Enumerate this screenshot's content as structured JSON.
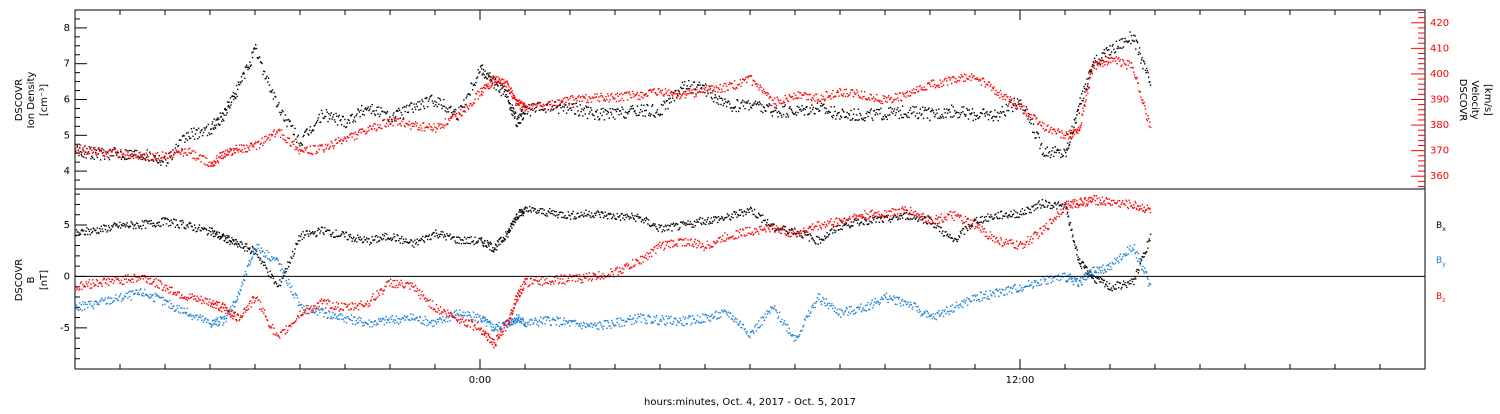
{
  "chart_data": [
    {
      "type": "scatter",
      "panel": "top",
      "ylabel_left": [
        "DSCOVR",
        "Ion Density",
        "[cm⁻³]"
      ],
      "ylabel_right": [
        "DSCOVR",
        "Velocity",
        "[km/s]"
      ],
      "y_left_range": [
        3.5,
        8.5
      ],
      "y_left_ticks": [
        "4",
        "5",
        "6",
        "7",
        "8"
      ],
      "y_right_range": [
        355,
        425
      ],
      "y_right_ticks": [
        "360",
        "370",
        "380",
        "390",
        "400",
        "410",
        "420"
      ],
      "series": [
        {
          "color": "#000000",
          "x": [
            -9.0,
            -8.5,
            -8.0,
            -7.5,
            -7.0,
            -6.5,
            -6.0,
            -5.7,
            -5.4,
            -5.0,
            -4.5,
            -4.0,
            -3.5,
            -3.0,
            -2.5,
            -2.0,
            -1.5,
            -1.0,
            -0.5,
            0.0,
            0.3,
            0.6,
            0.8,
            1.0,
            1.5,
            2.0,
            2.5,
            3.0,
            3.5,
            4.0,
            4.5,
            5.0,
            5.5,
            6.0,
            6.5,
            7.0,
            7.5,
            8.0,
            8.5,
            9.0,
            9.5,
            10.0,
            10.5,
            11.0,
            11.5,
            12.0,
            12.5,
            13.0,
            13.3,
            13.6,
            14.0,
            14.5,
            14.9
          ],
          "y": [
            4.6,
            4.5,
            4.5,
            4.5,
            4.3,
            5.0,
            5.2,
            5.6,
            6.3,
            7.4,
            5.8,
            4.8,
            5.6,
            5.4,
            5.8,
            5.5,
            5.8,
            6.0,
            5.6,
            6.9,
            6.5,
            6.1,
            5.4,
            5.7,
            5.8,
            5.8,
            5.6,
            5.6,
            5.7,
            5.7,
            6.4,
            6.3,
            5.8,
            5.9,
            5.7,
            5.7,
            5.8,
            5.6,
            5.6,
            5.6,
            5.7,
            5.6,
            5.7,
            5.6,
            5.6,
            6.0,
            4.6,
            4.5,
            5.8,
            7.0,
            7.4,
            7.8,
            6.4
          ]
        },
        {
          "color": "#ff0000",
          "x": [
            -9.0,
            -8.5,
            -8.0,
            -7.5,
            -7.0,
            -6.5,
            -6.0,
            -5.7,
            -5.4,
            -5.0,
            -4.5,
            -4.0,
            -3.5,
            -3.0,
            -2.5,
            -2.0,
            -1.5,
            -1.0,
            -0.5,
            0.0,
            0.3,
            0.6,
            0.8,
            1.0,
            1.5,
            2.0,
            2.5,
            3.0,
            3.5,
            4.0,
            4.5,
            5.0,
            5.5,
            6.0,
            6.5,
            7.0,
            7.5,
            8.0,
            8.5,
            9.0,
            9.5,
            10.0,
            10.5,
            11.0,
            11.5,
            12.0,
            12.5,
            13.0,
            13.3,
            13.6,
            14.0,
            14.5,
            14.9
          ],
          "y": [
            371,
            370,
            369,
            368,
            368,
            370,
            365,
            369,
            371,
            372,
            378,
            370,
            371,
            375,
            378,
            382,
            380,
            379,
            384,
            393,
            398,
            396,
            389,
            387,
            388,
            390,
            391,
            391,
            392,
            393,
            392,
            394,
            395,
            398,
            389,
            392,
            391,
            393,
            392,
            390,
            392,
            396,
            398,
            399,
            393,
            387,
            380,
            376,
            378,
            403,
            406,
            403,
            378
          ]
        }
      ]
    },
    {
      "type": "scatter",
      "panel": "bottom",
      "ylabel": [
        "DSCOVR",
        "B",
        "[nT]"
      ],
      "y_range": [
        -9,
        8.5
      ],
      "y_ticks": [
        "-5",
        "0",
        "5"
      ],
      "x_ticks": [
        "0:00",
        "12:00"
      ],
      "x_range": [
        -9,
        21
      ],
      "xlabel": "hours:minutes, Oct.  4, 2017 - Oct.  5, 2017",
      "legend": [
        "B",
        "B",
        "B"
      ],
      "legend_subs": [
        "x",
        "y",
        "z"
      ],
      "series": [
        {
          "color": "#000000",
          "x": [
            -9.0,
            -8.5,
            -8.0,
            -7.5,
            -7.0,
            -6.5,
            -6.0,
            -5.7,
            -5.4,
            -5.0,
            -4.5,
            -4.0,
            -3.5,
            -3.0,
            -2.5,
            -2.0,
            -1.5,
            -1.0,
            -0.5,
            0.0,
            0.3,
            0.6,
            0.8,
            1.0,
            1.5,
            2.0,
            2.5,
            3.0,
            3.5,
            4.0,
            4.5,
            5.0,
            5.5,
            6.0,
            6.5,
            7.0,
            7.5,
            8.0,
            8.5,
            9.0,
            9.5,
            10.0,
            10.5,
            11.0,
            11.5,
            12.0,
            12.5,
            13.0,
            13.3,
            13.6,
            14.0,
            14.5,
            14.9
          ],
          "y": [
            4.2,
            4.6,
            5.0,
            5.1,
            5.4,
            5.0,
            4.4,
            3.8,
            3.2,
            2.5,
            -1.0,
            4.0,
            4.5,
            4.0,
            3.5,
            4.0,
            3.2,
            4.3,
            3.6,
            3.5,
            2.8,
            4.2,
            6.0,
            6.5,
            6.3,
            6.0,
            6.2,
            5.9,
            5.8,
            4.7,
            5.0,
            5.5,
            5.8,
            6.6,
            4.8,
            4.5,
            3.5,
            5.0,
            5.5,
            5.6,
            6.0,
            5.5,
            3.5,
            5.5,
            6.0,
            6.2,
            7.2,
            6.8,
            1.5,
            0.0,
            -1.0,
            -0.5,
            4.0
          ]
        },
        {
          "color": "#1c7fd6",
          "x": [
            -9.0,
            -8.5,
            -8.0,
            -7.5,
            -7.0,
            -6.5,
            -6.0,
            -5.7,
            -5.4,
            -5.0,
            -4.5,
            -4.0,
            -3.5,
            -3.0,
            -2.5,
            -2.0,
            -1.5,
            -1.0,
            -0.5,
            0.0,
            0.3,
            0.6,
            0.8,
            1.0,
            1.5,
            2.0,
            2.5,
            3.0,
            3.5,
            4.0,
            4.5,
            5.0,
            5.5,
            6.0,
            6.5,
            7.0,
            7.5,
            8.0,
            8.5,
            9.0,
            9.5,
            10.0,
            10.5,
            11.0,
            11.5,
            12.0,
            12.5,
            13.0,
            13.3,
            13.6,
            14.0,
            14.5,
            14.9
          ],
          "y": [
            -3.0,
            -2.5,
            -2.0,
            -1.5,
            -2.5,
            -3.5,
            -4.5,
            -4.2,
            -2.0,
            3.0,
            1.5,
            -3.0,
            -3.5,
            -4.0,
            -4.5,
            -4.2,
            -4.0,
            -4.5,
            -3.5,
            -4.0,
            -5.0,
            -4.5,
            -4.0,
            -4.5,
            -4.2,
            -4.5,
            -4.8,
            -4.5,
            -4.0,
            -4.2,
            -4.3,
            -4.0,
            -3.5,
            -5.5,
            -3.0,
            -6.0,
            -2.0,
            -3.5,
            -3.0,
            -2.0,
            -2.5,
            -4.0,
            -3.0,
            -2.0,
            -1.5,
            -1.0,
            -0.3,
            0.0,
            -0.5,
            0.5,
            1.0,
            3.0,
            -1.0
          ]
        },
        {
          "color": "#ff0000",
          "x": [
            -9.0,
            -8.5,
            -8.0,
            -7.5,
            -7.0,
            -6.5,
            -6.0,
            -5.7,
            -5.4,
            -5.0,
            -4.5,
            -4.0,
            -3.5,
            -3.0,
            -2.5,
            -2.0,
            -1.5,
            -1.0,
            -0.5,
            0.0,
            0.3,
            0.6,
            0.8,
            1.0,
            1.5,
            2.0,
            2.5,
            3.0,
            3.5,
            4.0,
            4.5,
            5.0,
            5.5,
            6.0,
            6.5,
            7.0,
            7.5,
            8.0,
            8.5,
            9.0,
            9.5,
            10.0,
            10.5,
            11.0,
            11.5,
            12.0,
            12.5,
            13.0,
            13.3,
            13.6,
            14.0,
            14.5,
            14.9
          ],
          "y": [
            -1.0,
            -0.5,
            -0.3,
            0.0,
            -1.0,
            -2.0,
            -2.5,
            -3.0,
            -4.0,
            -2.0,
            -6.0,
            -3.5,
            -2.5,
            -3.0,
            -2.5,
            -0.5,
            -1.0,
            -3.0,
            -4.0,
            -5.0,
            -6.5,
            -4.5,
            -2.0,
            -0.5,
            -0.3,
            -0.2,
            0.0,
            0.5,
            1.5,
            3.0,
            3.5,
            3.0,
            4.0,
            4.5,
            4.8,
            4.2,
            5.0,
            5.5,
            6.0,
            6.2,
            6.5,
            5.5,
            6.0,
            5.0,
            3.5,
            3.0,
            4.5,
            7.0,
            7.2,
            7.5,
            7.3,
            7.0,
            6.5
          ]
        }
      ]
    }
  ]
}
